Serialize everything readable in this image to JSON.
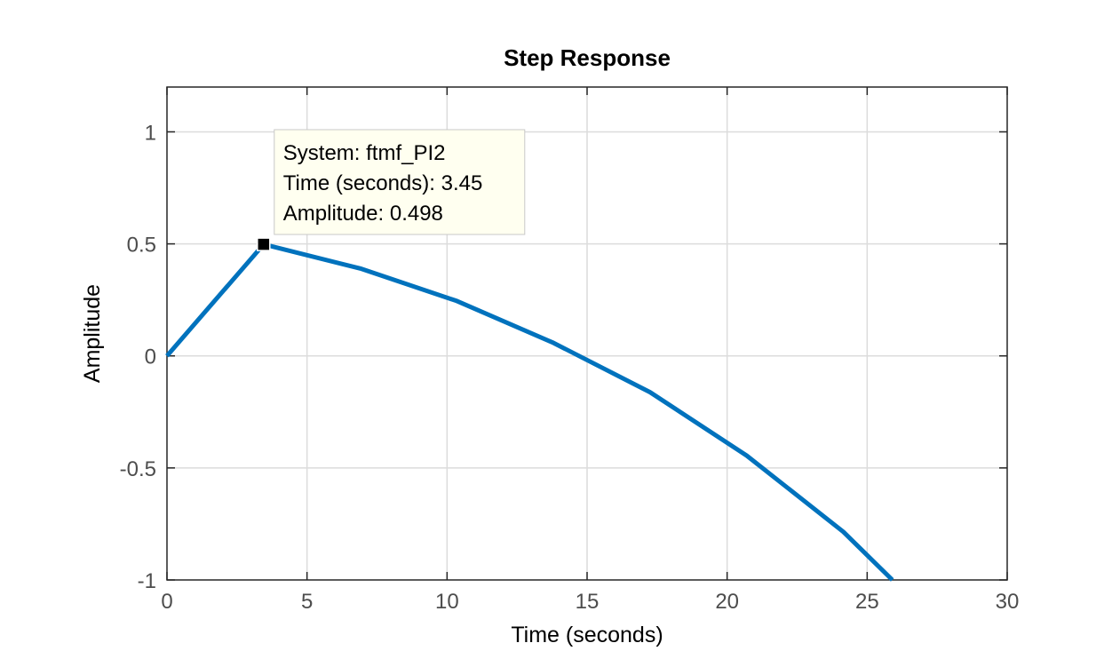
{
  "chart_data": {
    "type": "line",
    "title": "Step Response",
    "xlabel": "Time (seconds)",
    "ylabel": "Amplitude",
    "xlim": [
      0,
      30
    ],
    "ylim": [
      -1,
      1.2
    ],
    "xticks": [
      0,
      5,
      10,
      15,
      20,
      25,
      30
    ],
    "yticks": [
      -1,
      -0.5,
      0,
      0.5,
      1
    ],
    "xtick_labels": [
      "0",
      "5",
      "10",
      "15",
      "20",
      "25",
      "30"
    ],
    "ytick_labels": [
      "-1",
      "-0.5",
      "0",
      "0.5",
      "1"
    ],
    "grid": true,
    "series": [
      {
        "color": "#0072bd",
        "x": [
          0,
          3.45,
          6.9,
          10.35,
          13.8,
          17.25,
          20.7,
          24.15,
          25.9
        ],
        "y": [
          0,
          0.498,
          0.39,
          0.245,
          0.058,
          -0.162,
          -0.445,
          -0.785,
          -1.0
        ]
      }
    ],
    "datatip": {
      "x": 3.45,
      "y": 0.498,
      "lines": [
        "System: ftmf_PI2",
        "Time (seconds): 3.45",
        "Amplitude: 0.498"
      ]
    }
  },
  "colors": {
    "line": "#0072bd",
    "grid": "#dcdcdc",
    "axes": "#262626",
    "tooltip_bg": "#fffff0",
    "tooltip_border": "#c8c8c8"
  }
}
